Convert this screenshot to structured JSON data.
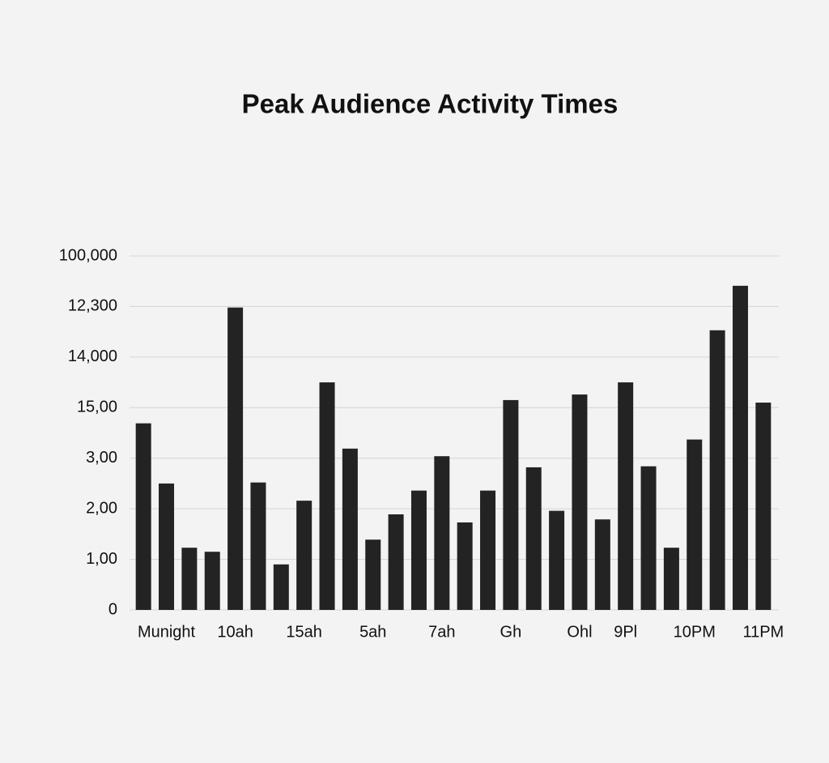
{
  "chart_data": {
    "type": "bar",
    "title": "Peak Audience Activity Times",
    "categories": [
      null,
      "Munight",
      null,
      null,
      "10ah",
      null,
      null,
      "15ah",
      null,
      null,
      "5ah",
      null,
      null,
      "7ah",
      null,
      null,
      "Gh",
      null,
      null,
      "Ohl",
      null,
      "9Pl",
      null,
      null,
      "10PM",
      null,
      null,
      "11PM"
    ],
    "values": [
      3.69,
      2.5,
      1.23,
      1.15,
      5.98,
      2.52,
      0.9,
      2.16,
      4.5,
      3.19,
      1.39,
      1.89,
      2.36,
      3.04,
      1.73,
      2.36,
      4.15,
      2.82,
      1.96,
      4.26,
      1.79,
      4.5,
      2.84,
      1.23,
      3.37,
      5.53,
      6.41,
      4.1
    ],
    "color": "#232323",
    "ylim": [
      0,
      7
    ],
    "yticks": [
      0,
      {
        "value": 1,
        "label": "1,00"
      },
      {
        "value": 2,
        "label": "2,00"
      },
      {
        "value": 3,
        "label": "3,00"
      },
      {
        "value": 4,
        "label": "15,00"
      },
      {
        "value": 5,
        "label": "14,000"
      },
      {
        "value": 6,
        "label": "12,300"
      },
      {
        "value": 7,
        "label": "100,000"
      }
    ],
    "grid": true
  }
}
